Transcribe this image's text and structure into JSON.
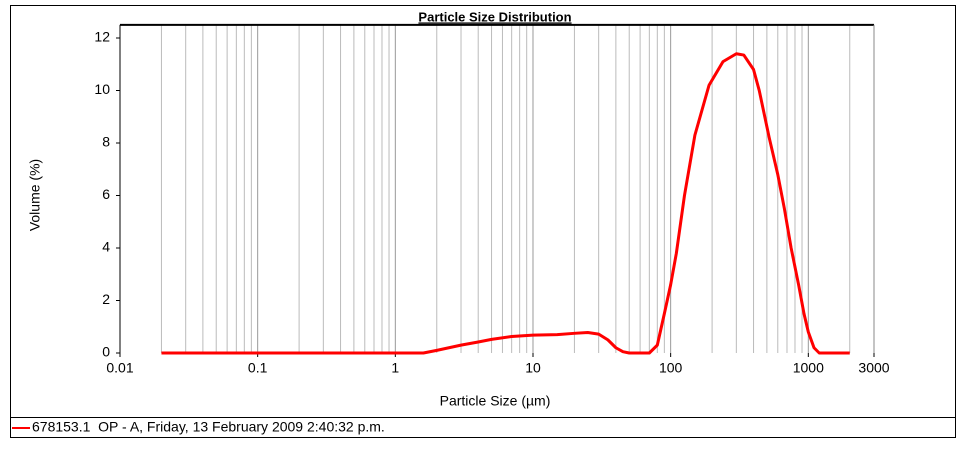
{
  "chart_data": {
    "type": "line",
    "title": "Particle Size Distribution",
    "x_label": "Particle Size (µm)",
    "y_label": "Volume (%)",
    "x_scale": "log",
    "grid": "x",
    "minor_grid": true,
    "xlim": [
      0.01,
      3000
    ],
    "xticks": [
      0.01,
      0.1,
      1,
      10,
      100,
      1000,
      3000
    ],
    "ylim": [
      0,
      12.5
    ],
    "yticks": [
      0,
      2,
      4,
      6,
      8,
      10,
      12
    ],
    "legend": "bottom",
    "series": [
      {
        "name": "678153.1  OP - A, Friday, 13 February 2009 2:40:32 p.m.",
        "color": "#ff0000",
        "x": [
          0.02,
          0.1,
          1,
          1.6,
          2,
          3,
          4,
          5,
          7,
          10,
          15,
          20,
          25,
          30,
          35,
          40,
          45,
          50,
          70,
          80,
          90,
          100,
          110,
          126,
          150,
          190,
          240,
          300,
          340,
          400,
          440,
          520,
          600,
          670,
          750,
          850,
          930,
          1000,
          1100,
          1200,
          1500,
          2000
        ],
        "values": [
          0,
          0,
          0,
          0,
          0.1,
          0.3,
          0.42,
          0.52,
          0.63,
          0.68,
          0.7,
          0.75,
          0.78,
          0.72,
          0.5,
          0.2,
          0.05,
          0,
          0,
          0.3,
          1.5,
          2.6,
          3.8,
          6,
          8.3,
          10.2,
          11.1,
          11.4,
          11.35,
          10.8,
          10,
          8.2,
          6.8,
          5.5,
          4,
          2.6,
          1.5,
          0.8,
          0.2,
          0,
          0,
          0
        ]
      }
    ]
  }
}
